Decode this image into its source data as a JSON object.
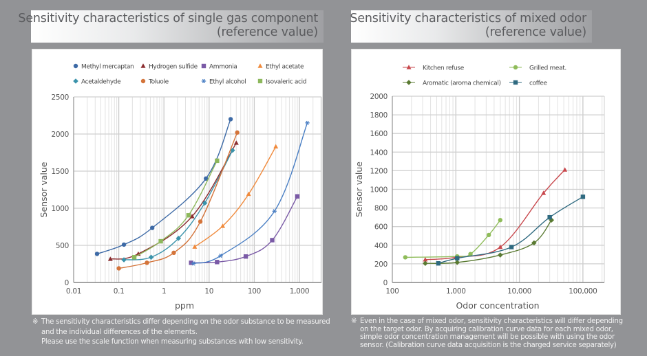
{
  "left": {
    "title_line1": "Sensitivity characteristics of single gas component",
    "title_line2": "(reference value)",
    "note_mark": "※",
    "note_lines": [
      "The sensitivity characteristics differ depending on the odor substance to be measured",
      "and the individual differences of the elements.",
      "Please use the scale function when measuring substances with low sensitivity."
    ]
  },
  "right": {
    "title_line1": "Sensitivity characteristics of mixed odor",
    "title_line2": "(reference value)",
    "note_mark": "※",
    "note_lines": [
      "Even in the case of mixed odor, sensitivity characteristics will differ depending",
      "on the target odor. By acquiring calibration curve data for each mixed odor,",
      "simple odor concentration management will be possible with using the odor",
      "sensor. (Calibration curve data acquisition is the charged service separately)"
    ]
  },
  "chart_data": [
    {
      "type": "line",
      "title": "Sensitivity characteristics of single gas component (reference value)",
      "xlabel": "ppm",
      "ylabel": "Sensor value",
      "xscale": "log",
      "xlim": [
        0.01,
        3000
      ],
      "ylim": [
        0,
        2500
      ],
      "xticks": [
        0.01,
        0.1,
        1,
        10,
        100,
        1000
      ],
      "xtick_labels": [
        "0.01",
        "0.1",
        "1",
        "10",
        "100",
        "1,000"
      ],
      "yticks": [
        0,
        500,
        1000,
        1500,
        2000,
        2500
      ],
      "ytick_labels": [
        "0",
        "500",
        "1000",
        "1500",
        "2000",
        "2500"
      ],
      "grid": true,
      "legend_position": "top",
      "series": [
        {
          "name": "Methyl mercaptan",
          "marker": "circle",
          "color": "#3d6aa6",
          "x": [
            0.033,
            0.13,
            0.55,
            8.5,
            30
          ],
          "y": [
            385,
            510,
            735,
            1400,
            2200
          ]
        },
        {
          "name": "Hydrogen sulfide",
          "marker": "triangle",
          "color": "#8b2d2f",
          "x": [
            0.065,
            0.27,
            4.2,
            40
          ],
          "y": [
            315,
            385,
            890,
            1880
          ]
        },
        {
          "name": "Ammonia",
          "marker": "square",
          "color": "#7a5aa6",
          "x": [
            4.0,
            15,
            65,
            250,
            900
          ],
          "y": [
            265,
            275,
            350,
            570,
            1160
          ]
        },
        {
          "name": "Ethyl acetate",
          "marker": "triangle",
          "color": "#f08a3c",
          "x": [
            4.8,
            20,
            75,
            300
          ],
          "y": [
            480,
            760,
            1190,
            1830
          ]
        },
        {
          "name": "Acetaldehyde",
          "marker": "diamond",
          "color": "#3a93ab",
          "x": [
            0.13,
            0.52,
            2.1,
            8.0,
            33
          ],
          "y": [
            305,
            340,
            595,
            1070,
            1780
          ]
        },
        {
          "name": "Toluole",
          "marker": "circle",
          "color": "#d4743a",
          "x": [
            0.1,
            0.42,
            1.65,
            6.4,
            42
          ],
          "y": [
            190,
            265,
            400,
            820,
            2020
          ]
        },
        {
          "name": "Ethyl alcohol",
          "marker": "asterisk",
          "color": "#4a7fc4",
          "x": [
            4.5,
            18,
            280,
            1500
          ],
          "y": [
            255,
            360,
            960,
            2150
          ]
        },
        {
          "name": "Isovaleric acid",
          "marker": "square",
          "color": "#8db85c",
          "x": [
            0.22,
            0.85,
            3.5,
            15
          ],
          "y": [
            340,
            555,
            905,
            1640
          ]
        }
      ]
    },
    {
      "type": "line",
      "title": "Sensitivity characteristics of mixed odor (reference value)",
      "xlabel": "Odor concentration",
      "ylabel": "Sensor value",
      "xscale": "log",
      "xlim": [
        100,
        300000
      ],
      "ylim": [
        0,
        2000
      ],
      "xticks": [
        100,
        1000,
        10000,
        100000
      ],
      "xtick_labels": [
        "100",
        "1,000",
        "10,000",
        "100,000"
      ],
      "yticks": [
        0,
        200,
        400,
        600,
        800,
        1000,
        1200,
        1400,
        1600,
        1800,
        2000
      ],
      "ytick_labels": [
        "0",
        "200",
        "400",
        "600",
        "800",
        "1000",
        "1200",
        "1400",
        "1600",
        "1800",
        "2000"
      ],
      "grid": true,
      "legend_position": "top",
      "series": [
        {
          "name": "Kitchen refuse",
          "marker": "triangle",
          "color": "#c8474c",
          "x": [
            330,
            1000,
            5000,
            24000,
            52000
          ],
          "y": [
            245,
            270,
            380,
            960,
            1210
          ]
        },
        {
          "name": "Grilled meat.",
          "marker": "circle",
          "color": "#8fbc5a",
          "x": [
            160,
            1050,
            1700,
            3300,
            5000
          ],
          "y": [
            270,
            280,
            305,
            510,
            670
          ]
        },
        {
          "name": "Aromatic (aroma chemical)",
          "marker": "diamond",
          "color": "#5a7a32",
          "x": [
            330,
            1050,
            5000,
            17000,
            32000
          ],
          "y": [
            205,
            215,
            295,
            425,
            670
          ]
        },
        {
          "name": "coffee",
          "marker": "square",
          "color": "#2f6a80",
          "x": [
            530,
            1050,
            7500,
            30000,
            100000
          ],
          "y": [
            205,
            260,
            380,
            700,
            920
          ]
        }
      ]
    }
  ]
}
